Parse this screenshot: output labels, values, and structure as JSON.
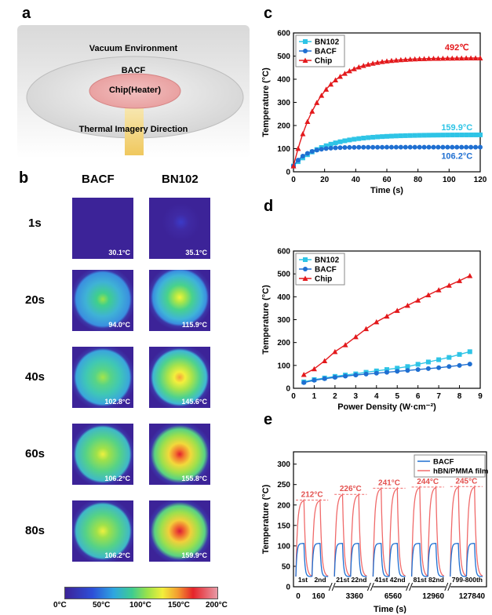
{
  "panels": {
    "a": "a",
    "b": "b",
    "c": "c",
    "d": "d",
    "e": "e"
  },
  "schematic": {
    "env": "Vacuum Environment",
    "bacf": "BACF",
    "chip": "Chip(Heater)",
    "direction": "Thermal Imagery Direction"
  },
  "thermal": {
    "columns": [
      "BACF",
      "BN102"
    ],
    "rows": [
      {
        "time": "1s",
        "bacf": "30.1°C",
        "bn": "35.1°C"
      },
      {
        "time": "20s",
        "bacf": "94.0°C",
        "bn": "115.9°C"
      },
      {
        "time": "40s",
        "bacf": "102.8°C",
        "bn": "145.6°C"
      },
      {
        "time": "60s",
        "bacf": "106.2°C",
        "bn": "155.8°C"
      },
      {
        "time": "80s",
        "bacf": "106.2°C",
        "bn": "159.9°C"
      }
    ],
    "colorbar_ticks": [
      "0°C",
      "50°C",
      "100°C",
      "150°C",
      "200°C"
    ]
  },
  "chart_data": [
    {
      "type": "line",
      "panel": "c",
      "xlabel": "Time (s)",
      "ylabel": "Temperature (°C)",
      "xlim": [
        0,
        120
      ],
      "ylim": [
        0,
        600
      ],
      "xticks": [
        0,
        20,
        40,
        60,
        80,
        100,
        120
      ],
      "yticks": [
        0,
        100,
        200,
        300,
        400,
        500,
        600
      ],
      "legend": "top-left",
      "series": [
        {
          "name": "BN102",
          "color": "#2ec4e6",
          "plateau": 159.9,
          "start": 25,
          "tau": 20
        },
        {
          "name": "BACF",
          "color": "#1f6fd1",
          "plateau": 106.2,
          "start": 25,
          "tau": 8
        },
        {
          "name": "Chip",
          "color": "#e3191c",
          "plateau": 492,
          "start": 25,
          "tau": 17
        }
      ],
      "annotations": [
        "492℃",
        "159.9°C",
        "106.2°C"
      ]
    },
    {
      "type": "line",
      "panel": "d",
      "xlabel": "Power Density (W·cm⁻²)",
      "ylabel": "Temperature (°C)",
      "xlim": [
        0,
        9
      ],
      "ylim": [
        0,
        600
      ],
      "xticks": [
        0,
        1,
        2,
        3,
        4,
        5,
        6,
        7,
        8,
        9
      ],
      "yticks": [
        0,
        100,
        200,
        300,
        400,
        500,
        600
      ],
      "legend": "top-left",
      "x": [
        0.5,
        1.0,
        1.5,
        2.0,
        2.5,
        3.0,
        3.5,
        4.0,
        4.5,
        5.0,
        5.5,
        6.0,
        6.5,
        7.0,
        7.5,
        8.0,
        8.5
      ],
      "series": [
        {
          "name": "BN102",
          "color": "#2ec4e6",
          "marker": "square",
          "values": [
            28,
            38,
            45,
            52,
            58,
            63,
            70,
            76,
            82,
            88,
            95,
            105,
            115,
            125,
            135,
            148,
            160
          ]
        },
        {
          "name": "BACF",
          "color": "#1f6fd1",
          "marker": "circle",
          "values": [
            25,
            35,
            42,
            48,
            53,
            58,
            62,
            66,
            70,
            74,
            78,
            82,
            86,
            90,
            95,
            100,
            106
          ]
        },
        {
          "name": "Chip",
          "color": "#e3191c",
          "marker": "triangle",
          "values": [
            60,
            85,
            120,
            160,
            190,
            225,
            260,
            290,
            315,
            340,
            362,
            385,
            408,
            430,
            450,
            470,
            492
          ]
        }
      ]
    },
    {
      "type": "line",
      "panel": "e",
      "xlabel": "Time (s)",
      "ylabel": "Temperature (°C)",
      "ylim": [
        0,
        330
      ],
      "yticks": [
        0,
        50,
        100,
        150,
        200,
        250,
        300
      ],
      "xticks": [
        "0",
        "160",
        "3360",
        "6560",
        "12960",
        "127840"
      ],
      "legend": "top-right",
      "series": [
        {
          "name": "BACF",
          "color": "#1f6fd1"
        },
        {
          "name": "hBN/PMMA film",
          "color": "#f06a6a"
        }
      ],
      "peaks": [
        212,
        226,
        241,
        244,
        245
      ],
      "peak_labels": [
        "212°C",
        "226°C",
        "241°C",
        "244°C",
        "245°C"
      ],
      "cycle_labels": [
        "1st",
        "2nd",
        "21st 22nd",
        "41st 42nd",
        "81st 82nd",
        "799-800th"
      ]
    }
  ]
}
